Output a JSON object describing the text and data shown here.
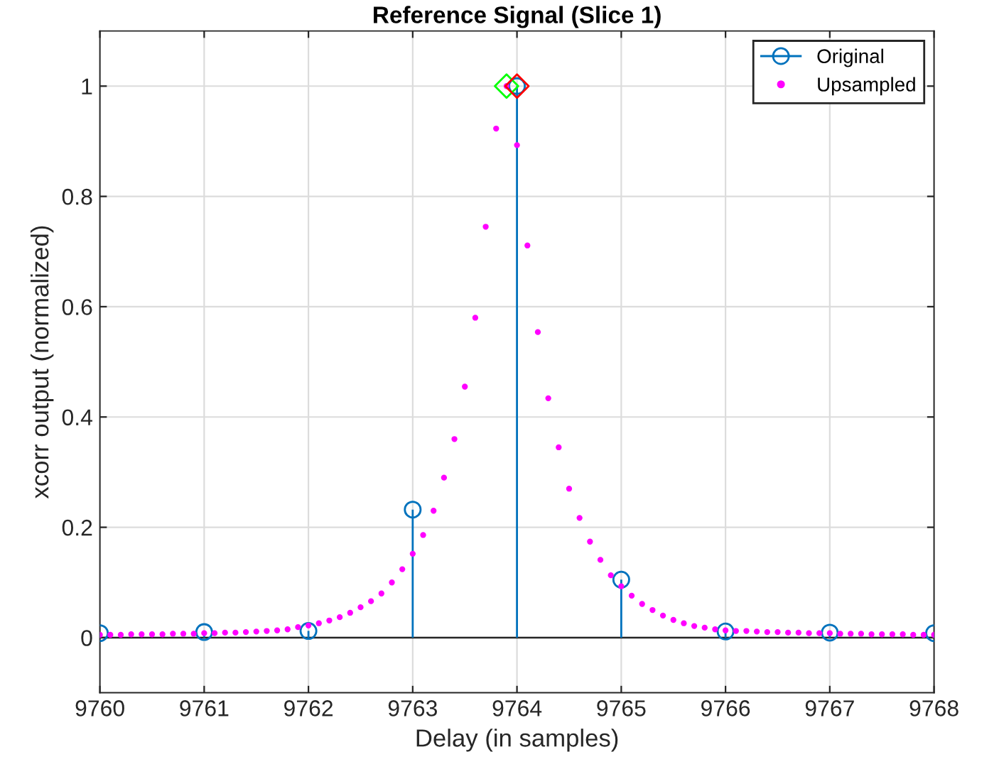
{
  "chart_data": {
    "type": "lollipop",
    "title": "Reference Signal (Slice 1)",
    "xlabel": "Delay (in samples)",
    "ylabel": "xcorr output (normalized)",
    "xlim": [
      9760,
      9768
    ],
    "xticks": [
      9760,
      9761,
      9762,
      9763,
      9764,
      9765,
      9766,
      9767,
      9768
    ],
    "ylim": [
      -0.1,
      1.1
    ],
    "yticks": [
      0,
      0.2,
      0.4,
      0.6,
      0.8,
      1
    ],
    "grid": true,
    "legend": "top right",
    "ref_lines": [
      {
        "axis": "y",
        "value": 0,
        "color": "#262626"
      }
    ],
    "series": [
      {
        "name": "Original",
        "marker": "circle",
        "color": "#0072bd",
        "x": [
          9760,
          9761,
          9762,
          9763,
          9764,
          9765,
          9766,
          9767,
          9768
        ],
        "values": [
          0.008,
          0.01,
          0.012,
          0.232,
          1.0,
          0.105,
          0.011,
          0.009,
          0.008
        ]
      },
      {
        "name": "Upsampled",
        "type": "scatter",
        "marker": "circle",
        "color": "#ff00ff",
        "x": [
          9760.0,
          9760.1,
          9760.2,
          9760.3,
          9760.4,
          9760.5,
          9760.6,
          9760.7,
          9760.8,
          9760.9,
          9761.0,
          9761.1,
          9761.2,
          9761.3,
          9761.4,
          9761.5,
          9761.6,
          9761.7,
          9761.8,
          9761.9,
          9762.0,
          9762.1,
          9762.2,
          9762.3,
          9762.4,
          9762.5,
          9762.6,
          9762.7,
          9762.8,
          9762.9,
          9763.0,
          9763.1,
          9763.2,
          9763.3,
          9763.4,
          9763.5,
          9763.6,
          9763.7,
          9763.8,
          9763.9,
          9764.0,
          9764.1,
          9764.2,
          9764.3,
          9764.4,
          9764.5,
          9764.6,
          9764.7,
          9764.8,
          9764.9,
          9765.0,
          9765.1,
          9765.2,
          9765.3,
          9765.4,
          9765.5,
          9765.6,
          9765.7,
          9765.8,
          9765.9,
          9766.0,
          9766.1,
          9766.2,
          9766.3,
          9766.4,
          9766.5,
          9766.6,
          9766.7,
          9766.8,
          9766.9,
          9767.0,
          9767.1,
          9767.2,
          9767.3,
          9767.4,
          9767.5,
          9767.6,
          9767.7,
          9767.8,
          9767.9,
          9768.0
        ],
        "values": [
          0.005,
          0.005,
          0.005,
          0.006,
          0.006,
          0.006,
          0.006,
          0.007,
          0.007,
          0.007,
          0.008,
          0.008,
          0.009,
          0.009,
          0.01,
          0.011,
          0.012,
          0.013,
          0.015,
          0.019,
          0.022,
          0.026,
          0.031,
          0.037,
          0.045,
          0.055,
          0.066,
          0.08,
          0.1,
          0.124,
          0.152,
          0.186,
          0.23,
          0.29,
          0.36,
          0.455,
          0.58,
          0.745,
          0.923,
          1.0,
          0.893,
          0.711,
          0.554,
          0.434,
          0.345,
          0.27,
          0.217,
          0.174,
          0.141,
          0.113,
          0.093,
          0.076,
          0.061,
          0.05,
          0.04,
          0.032,
          0.026,
          0.021,
          0.018,
          0.015,
          0.013,
          0.012,
          0.012,
          0.011,
          0.01,
          0.01,
          0.009,
          0.009,
          0.008,
          0.008,
          0.008,
          0.007,
          0.007,
          0.007,
          0.006,
          0.006,
          0.006,
          0.006,
          0.005,
          0.005,
          0.005
        ]
      },
      {
        "type": "scatter",
        "marker": "diamond",
        "color": "#00ff00",
        "x": [
          9763.9
        ],
        "values": [
          1.0
        ]
      },
      {
        "type": "scatter",
        "marker": "diamond",
        "color": "#ff0000",
        "x": [
          9764
        ],
        "values": [
          1.0
        ]
      }
    ]
  }
}
